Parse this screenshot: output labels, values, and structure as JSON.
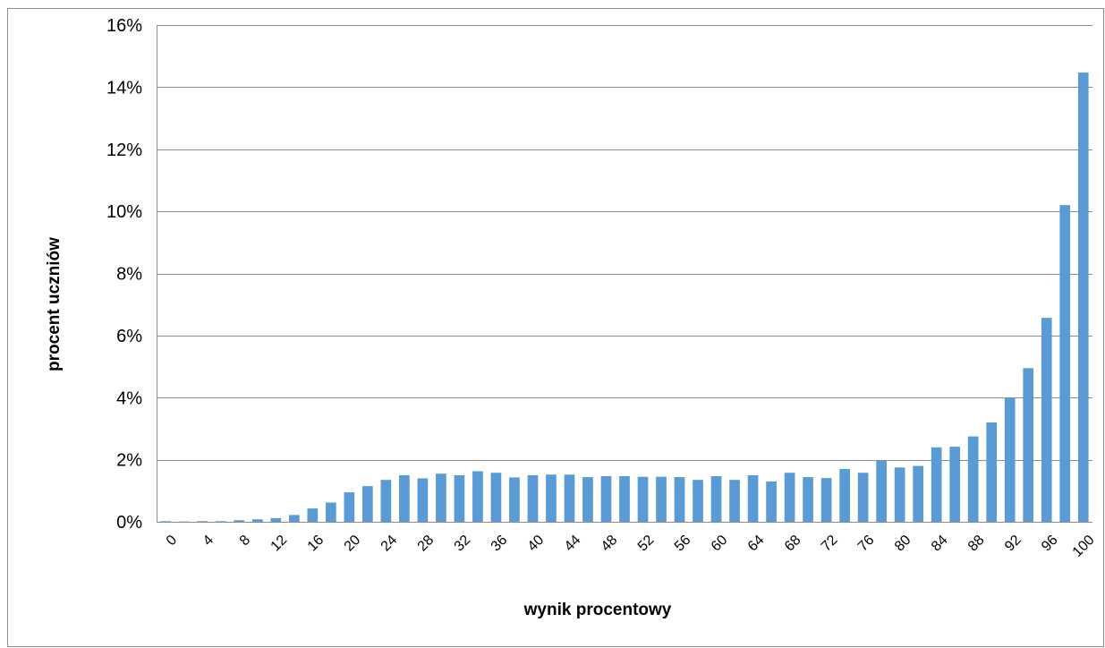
{
  "chart_data": {
    "type": "bar",
    "title": "",
    "xlabel": "wynik procentowy",
    "ylabel": "procent uczniów",
    "ylim": [
      0,
      16
    ],
    "yticks": [
      0,
      2,
      4,
      6,
      8,
      10,
      12,
      14,
      16
    ],
    "ytick_labels": [
      "0%",
      "2%",
      "4%",
      "6%",
      "8%",
      "10%",
      "12%",
      "14%",
      "16%"
    ],
    "y_unit": "%",
    "grid": true,
    "legend": "none",
    "bar_color": "#5b9bd5",
    "categories": [
      "0",
      "2",
      "4",
      "6",
      "8",
      "10",
      "12",
      "14",
      "16",
      "18",
      "20",
      "22",
      "24",
      "26",
      "28",
      "30",
      "32",
      "34",
      "36",
      "38",
      "40",
      "42",
      "44",
      "46",
      "48",
      "50",
      "52",
      "54",
      "56",
      "58",
      "60",
      "62",
      "64",
      "66",
      "68",
      "70",
      "72",
      "74",
      "76",
      "78",
      "80",
      "82",
      "84",
      "86",
      "88",
      "90",
      "92",
      "94",
      "96",
      "98",
      "100"
    ],
    "xtick_labels": [
      "0",
      "4",
      "8",
      "12",
      "16",
      "20",
      "24",
      "28",
      "32",
      "36",
      "40",
      "44",
      "48",
      "52",
      "56",
      "60",
      "64",
      "68",
      "72",
      "76",
      "80",
      "84",
      "88",
      "92",
      "96",
      "100"
    ],
    "values": [
      0.02,
      0.01,
      0.02,
      0.02,
      0.05,
      0.08,
      0.12,
      0.22,
      0.43,
      0.62,
      0.95,
      1.15,
      1.35,
      1.5,
      1.4,
      1.55,
      1.5,
      1.63,
      1.58,
      1.43,
      1.5,
      1.52,
      1.52,
      1.44,
      1.47,
      1.47,
      1.45,
      1.45,
      1.44,
      1.35,
      1.47,
      1.35,
      1.5,
      1.3,
      1.58,
      1.44,
      1.41,
      1.7,
      1.58,
      1.97,
      1.75,
      1.8,
      2.4,
      2.42,
      2.75,
      3.2,
      4.0,
      4.95,
      6.57,
      10.2,
      14.47
    ]
  }
}
